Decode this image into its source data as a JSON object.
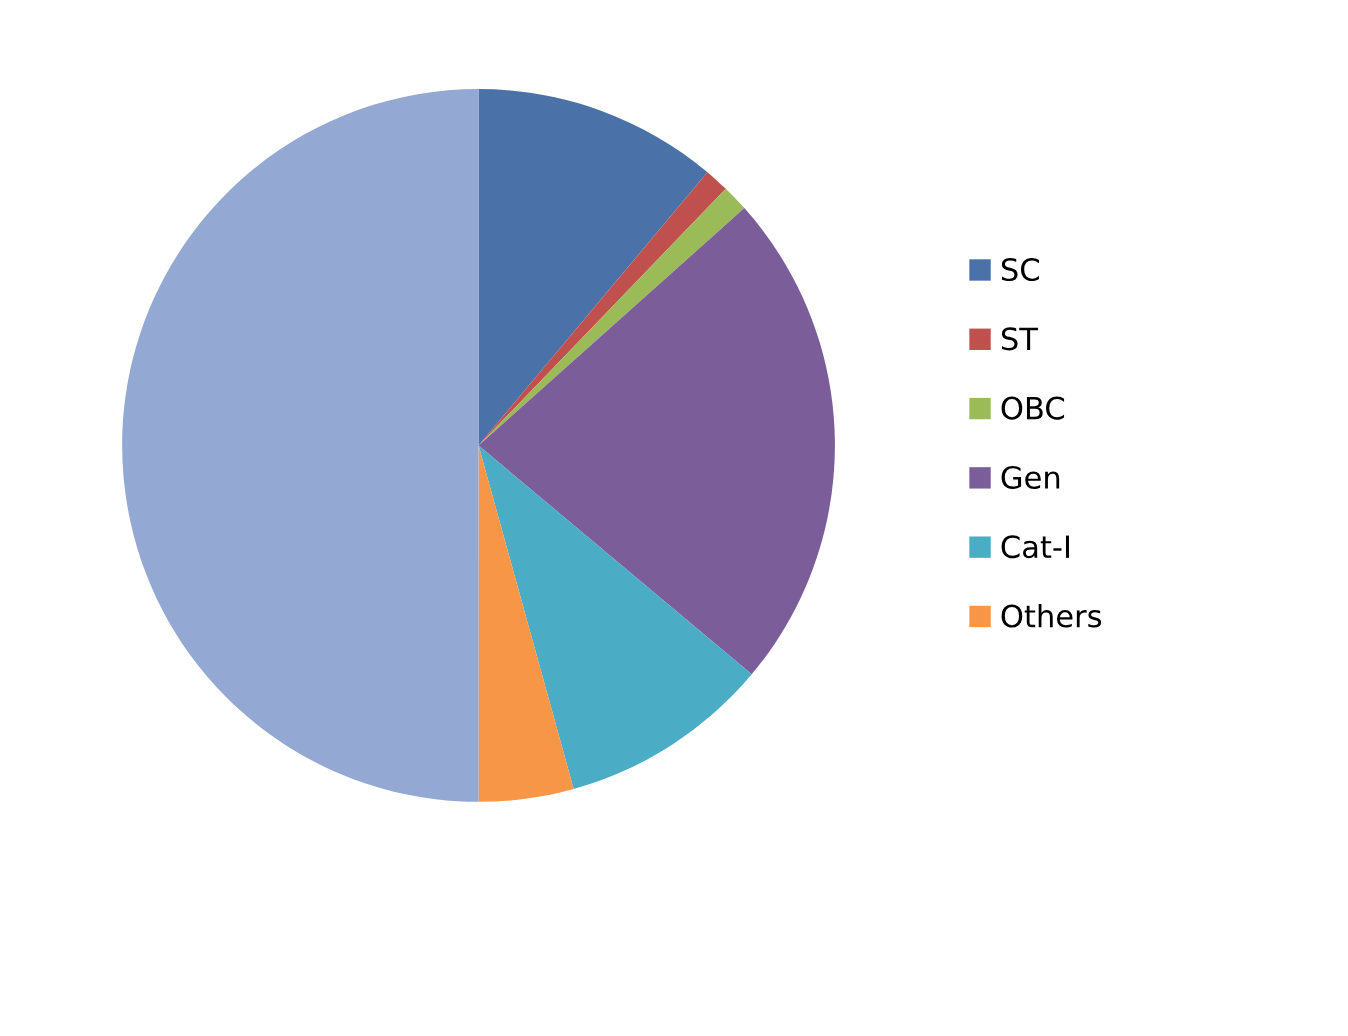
{
  "chart_data": {
    "type": "pie",
    "categories": [
      "SC",
      "ST",
      "OBC",
      "Gen",
      "Cat-I",
      "Others",
      null
    ],
    "values": [
      11.1,
      1.1,
      1.2,
      22.7,
      9.6,
      4.3,
      50
    ],
    "colors": [
      "#4a72a8",
      "#c0504d",
      "#9bbb59",
      "#7b5d99",
      "#4bacc6",
      "#f79646",
      "#93a8d2"
    ],
    "legend": "right"
  }
}
